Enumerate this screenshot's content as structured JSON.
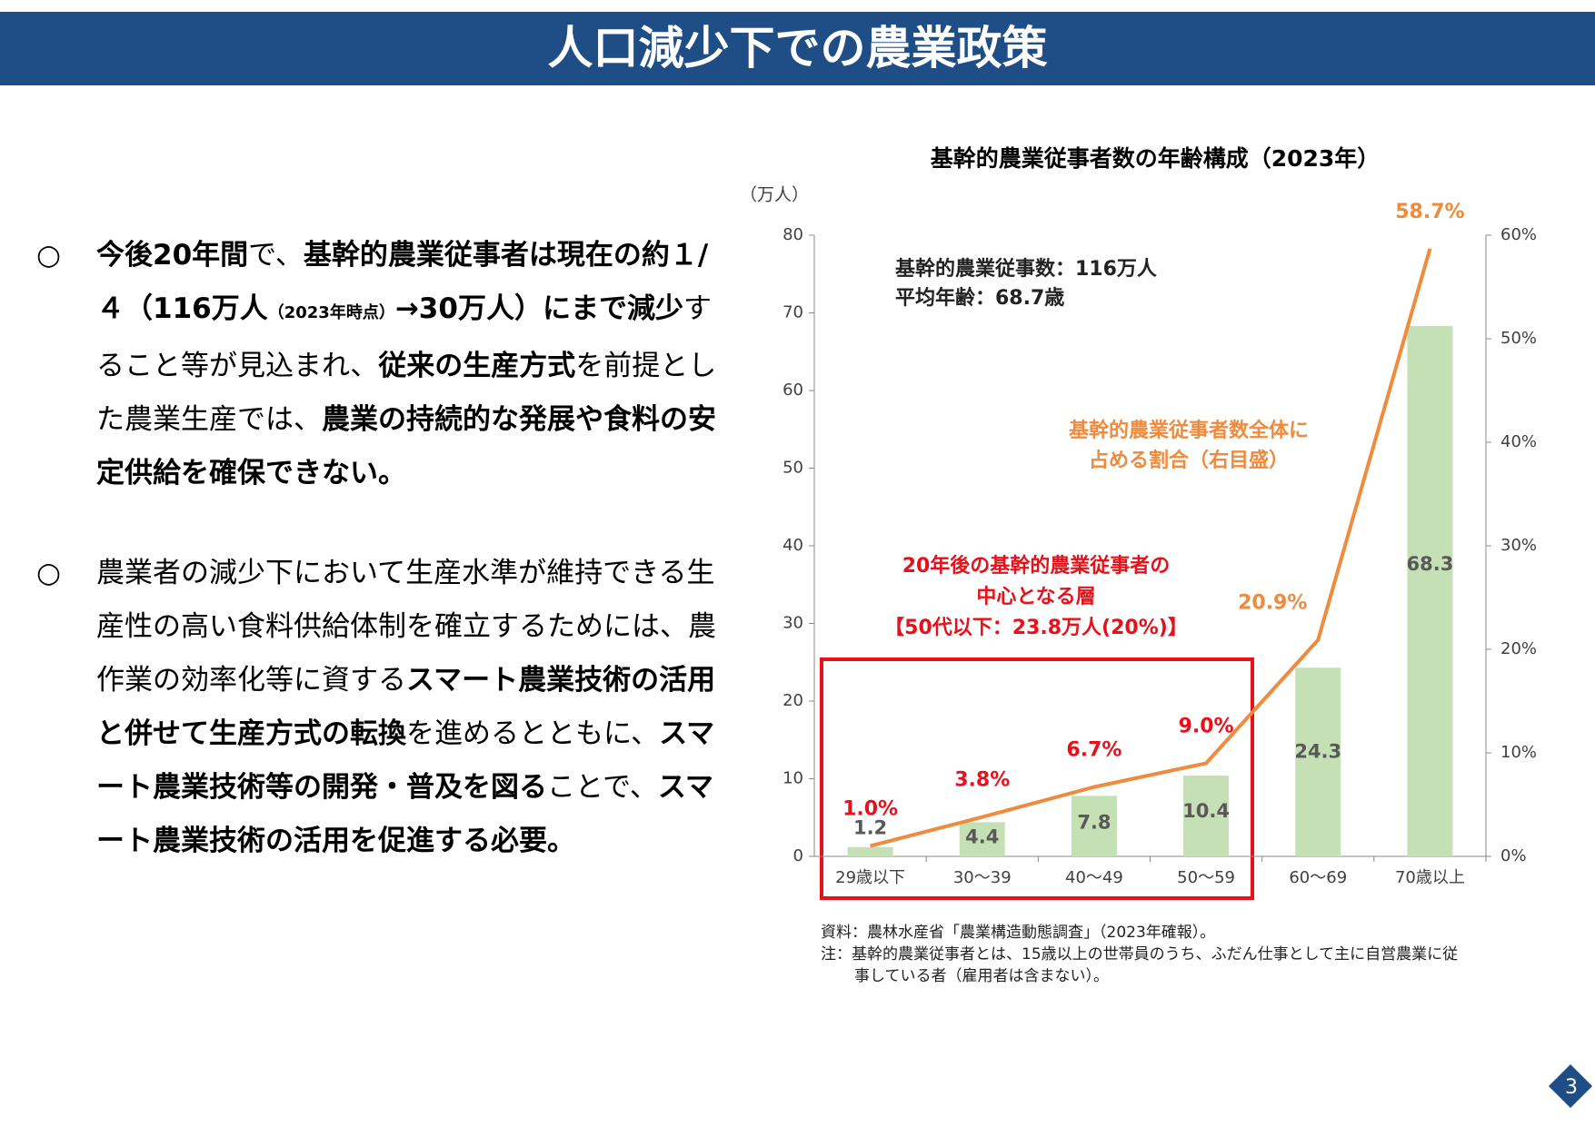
{
  "header": {
    "title": "人口減少下での農業政策"
  },
  "bullets": [
    {
      "segments": [
        {
          "text": "今後20年間",
          "bold": true
        },
        {
          "text": "で、",
          "bold": false
        },
        {
          "text": "基幹的農業従事者は現在の約１/４（116万人",
          "bold": true
        },
        {
          "text": "（2023年時点）",
          "bold": true,
          "small": true
        },
        {
          "text": "→30万人）にまで減少",
          "bold": true
        },
        {
          "text": "すること等が見込まれ、",
          "bold": false
        },
        {
          "text": "従来の生産方式",
          "bold": true
        },
        {
          "text": "を前提とした農業生産では、",
          "bold": false
        },
        {
          "text": "農業の持続的な発展や食料の安定供給を確保できない。",
          "bold": true
        }
      ]
    },
    {
      "segments": [
        {
          "text": "農業者の減少下において生産水準が維持できる生産性の高い食料供給体制を確立するためには、農作業の効率化等に資する",
          "bold": false
        },
        {
          "text": "スマート農業技術の活用と併せて生産方式の転換",
          "bold": true
        },
        {
          "text": "を進めるとともに、",
          "bold": false
        },
        {
          "text": "スマート農業技術等の開発・普及を図る",
          "bold": true
        },
        {
          "text": "ことで、",
          "bold": false
        },
        {
          "text": "スマート農業技術の活用を促進する必要。",
          "bold": true
        }
      ]
    }
  ],
  "chart_data": {
    "type": "bar",
    "title": "基幹的農業従事者数の年齢構成（2023年）",
    "y_label": "（万人）",
    "categories": [
      "29歳以下",
      "30～39",
      "40～49",
      "50～59",
      "60～69",
      "70歳以上"
    ],
    "series": [
      {
        "type": "bar",
        "color": "#c5e0b4",
        "label_color": "#595959",
        "values": [
          1.2,
          4.4,
          7.8,
          10.4,
          24.3,
          68.3
        ]
      },
      {
        "type": "line",
        "axis": "y2",
        "color": "#f08a3c",
        "values": [
          1.0,
          3.8,
          6.7,
          9.0,
          20.9,
          58.7
        ],
        "value_labels": [
          "1.0%",
          "3.8%",
          "6.7%",
          "9.0%",
          "20.9%",
          "58.7%"
        ],
        "value_label_colors": [
          "#e8101a",
          "#e8101a",
          "#e8101a",
          "#e8101a",
          "#f08a3c",
          "#f08a3c"
        ]
      }
    ],
    "ylim": [
      0,
      80
    ],
    "yticks": [
      0,
      10,
      20,
      30,
      40,
      50,
      60,
      70,
      80
    ],
    "y2lim": [
      0,
      60
    ],
    "y2ticks": [
      {
        "value": 0,
        "label": "0%"
      },
      {
        "value": 10,
        "label": "10%"
      },
      {
        "value": 20,
        "label": "20%"
      },
      {
        "value": 30,
        "label": "30%"
      },
      {
        "value": 40,
        "label": "40%"
      },
      {
        "value": 50,
        "label": "50%"
      },
      {
        "value": 60,
        "label": "60%"
      }
    ],
    "annotations": {
      "summary": [
        "基幹的農業従事数：116万人",
        "平均年齢：68.7歳"
      ],
      "share": [
        "基幹的農業従事者数全体に",
        "占める割合（右目盛）"
      ],
      "future": [
        "20年後の基幹的農業従事者の",
        "中心となる層",
        "【50代以下：23.8万人(20%)】"
      ]
    }
  },
  "notes": [
    "資料：農林水産省「農業構造動態調査」（2023年確報）。",
    "注：基幹的農業従事者とは、15歳以上の世帯員のうち、ふだん仕事として主に自営農業に従",
    "事している者（雇用者は含まない）。"
  ],
  "page_number": "3"
}
